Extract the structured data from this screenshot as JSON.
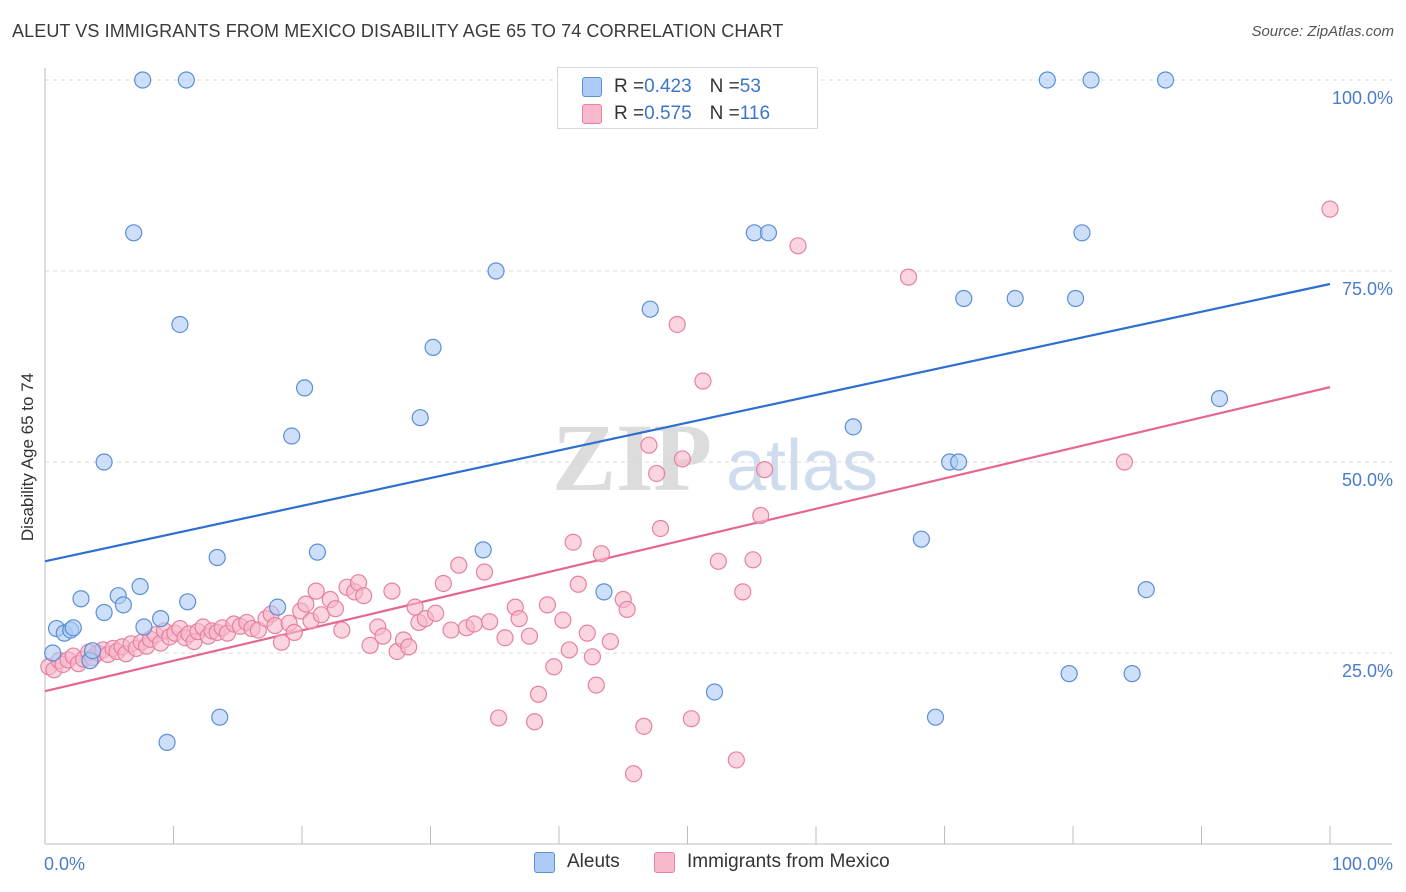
{
  "title": "ALEUT VS IMMIGRANTS FROM MEXICO DISABILITY AGE 65 TO 74 CORRELATION CHART",
  "source": "Source: ZipAtlas.com",
  "watermark": {
    "zip": "ZIP",
    "atlas": "atlas"
  },
  "legend_top": {
    "rows": [
      {
        "r_label": "R = ",
        "r_value": "0.423",
        "n_label": "N = ",
        "n_value": "53"
      },
      {
        "r_label": "R = ",
        "r_value": "0.575",
        "n_label": "N = ",
        "n_value": "116"
      }
    ]
  },
  "legend_bottom": {
    "aleuts": "Aleuts",
    "mexico": "Immigrants from Mexico"
  },
  "colors": {
    "aleut_fill": "#aecbf5",
    "aleut_stroke": "#5b8fd6",
    "aleut_line": "#2f6fcf",
    "mexico_fill": "#f7b9cc",
    "mexico_stroke": "#e7819f",
    "mexico_line": "#e5668f",
    "tick_text": "#4a7cc9",
    "grid": "#d9d9d9"
  },
  "chart_data": {
    "type": "scatter",
    "title": "ALEUT VS IMMIGRANTS FROM MEXICO DISABILITY AGE 65 TO 74 CORRELATION CHART",
    "xlabel": "",
    "ylabel": "Disability Age 65 to 74",
    "xlim": [
      0,
      100
    ],
    "ylim": [
      0,
      102
    ],
    "x_tick_labels": [
      "0.0%",
      "100.0%"
    ],
    "y_ticks": [
      25,
      50,
      75,
      100
    ],
    "y_tick_labels": [
      "25.0%",
      "50.0%",
      "75.0%",
      "100.0%"
    ],
    "grid": "horizontal dashed",
    "series": [
      {
        "name": "Aleuts",
        "r": 0.423,
        "n": 53,
        "trend": {
          "x": [
            0,
            100
          ],
          "y": [
            37.0,
            73.3
          ]
        },
        "points": [
          [
            0.6,
            25.0
          ],
          [
            0.9,
            28.2
          ],
          [
            1.5,
            27.6
          ],
          [
            2.0,
            28.0
          ],
          [
            2.2,
            28.3
          ],
          [
            2.8,
            32.1
          ],
          [
            3.5,
            24.0
          ],
          [
            3.7,
            25.3
          ],
          [
            4.6,
            30.3
          ],
          [
            4.6,
            50.0
          ],
          [
            5.7,
            32.5
          ],
          [
            6.1,
            31.3
          ],
          [
            6.9,
            80.0
          ],
          [
            7.4,
            33.7
          ],
          [
            7.6,
            100.0
          ],
          [
            7.7,
            28.4
          ],
          [
            9.0,
            29.5
          ],
          [
            9.5,
            13.3
          ],
          [
            10.5,
            68.0
          ],
          [
            11.0,
            100.0
          ],
          [
            11.1,
            31.7
          ],
          [
            13.4,
            37.5
          ],
          [
            13.6,
            16.6
          ],
          [
            18.1,
            31.0
          ],
          [
            19.2,
            53.4
          ],
          [
            20.2,
            59.7
          ],
          [
            21.2,
            38.2
          ],
          [
            29.2,
            55.8
          ],
          [
            30.2,
            65.0
          ],
          [
            34.1,
            38.5
          ],
          [
            35.1,
            75.0
          ],
          [
            43.5,
            33.0
          ],
          [
            47.1,
            70.0
          ],
          [
            52.1,
            19.9
          ],
          [
            55.2,
            80.0
          ],
          [
            56.3,
            80.0
          ],
          [
            58.5,
            100.0
          ],
          [
            62.9,
            54.6
          ],
          [
            68.2,
            39.9
          ],
          [
            69.3,
            16.6
          ],
          [
            70.4,
            50.0
          ],
          [
            71.1,
            50.0
          ],
          [
            71.5,
            71.4
          ],
          [
            75.5,
            71.4
          ],
          [
            78.0,
            100.0
          ],
          [
            79.7,
            22.3
          ],
          [
            80.2,
            71.4
          ],
          [
            80.7,
            80.0
          ],
          [
            81.4,
            100.0
          ],
          [
            84.6,
            22.3
          ],
          [
            85.7,
            33.3
          ],
          [
            87.2,
            100.0
          ],
          [
            91.4,
            58.3
          ]
        ]
      },
      {
        "name": "Immigrants from Mexico",
        "r": 0.575,
        "n": 116,
        "trend": {
          "x": [
            0,
            100
          ],
          "y": [
            20.0,
            59.8
          ]
        },
        "points": [
          [
            0.3,
            23.2
          ],
          [
            0.7,
            22.8
          ],
          [
            1.1,
            24.0
          ],
          [
            1.4,
            23.5
          ],
          [
            1.8,
            24.1
          ],
          [
            2.2,
            24.6
          ],
          [
            2.6,
            23.6
          ],
          [
            3.0,
            24.2
          ],
          [
            3.4,
            25.1
          ],
          [
            3.7,
            24.4
          ],
          [
            4.1,
            25.0
          ],
          [
            4.5,
            25.4
          ],
          [
            4.9,
            24.8
          ],
          [
            5.3,
            25.6
          ],
          [
            5.6,
            25.2
          ],
          [
            6.0,
            25.8
          ],
          [
            6.3,
            24.9
          ],
          [
            6.7,
            26.2
          ],
          [
            7.1,
            25.6
          ],
          [
            7.5,
            26.4
          ],
          [
            7.9,
            25.9
          ],
          [
            8.2,
            26.8
          ],
          [
            8.6,
            27.4
          ],
          [
            9.0,
            26.3
          ],
          [
            9.3,
            27.9
          ],
          [
            9.7,
            27.1
          ],
          [
            10.1,
            27.6
          ],
          [
            10.5,
            28.2
          ],
          [
            10.9,
            27.0
          ],
          [
            11.2,
            27.5
          ],
          [
            11.6,
            26.5
          ],
          [
            11.9,
            27.8
          ],
          [
            12.3,
            28.4
          ],
          [
            12.7,
            27.2
          ],
          [
            13.0,
            27.9
          ],
          [
            13.4,
            27.7
          ],
          [
            13.8,
            28.3
          ],
          [
            14.2,
            27.6
          ],
          [
            14.7,
            28.8
          ],
          [
            15.2,
            28.5
          ],
          [
            15.7,
            29.0
          ],
          [
            16.1,
            28.2
          ],
          [
            16.6,
            28.0
          ],
          [
            17.2,
            29.5
          ],
          [
            17.6,
            30.1
          ],
          [
            17.9,
            28.6
          ],
          [
            18.4,
            26.4
          ],
          [
            19.0,
            28.9
          ],
          [
            19.4,
            27.7
          ],
          [
            19.9,
            30.5
          ],
          [
            20.3,
            31.4
          ],
          [
            20.7,
            29.2
          ],
          [
            21.1,
            33.1
          ],
          [
            21.5,
            30.0
          ],
          [
            22.2,
            32.0
          ],
          [
            22.6,
            30.8
          ],
          [
            23.1,
            28.0
          ],
          [
            23.5,
            33.6
          ],
          [
            24.1,
            33.0
          ],
          [
            24.4,
            34.2
          ],
          [
            24.8,
            32.5
          ],
          [
            25.3,
            26.0
          ],
          [
            25.9,
            28.4
          ],
          [
            26.3,
            27.2
          ],
          [
            27.0,
            33.1
          ],
          [
            27.4,
            25.2
          ],
          [
            27.9,
            26.7
          ],
          [
            28.3,
            25.8
          ],
          [
            28.8,
            31.0
          ],
          [
            29.1,
            29.0
          ],
          [
            29.6,
            29.5
          ],
          [
            30.4,
            30.2
          ],
          [
            31.0,
            34.1
          ],
          [
            31.6,
            28.0
          ],
          [
            32.2,
            36.5
          ],
          [
            32.8,
            28.3
          ],
          [
            33.4,
            28.8
          ],
          [
            34.2,
            35.6
          ],
          [
            34.6,
            29.1
          ],
          [
            35.3,
            16.5
          ],
          [
            35.8,
            27.0
          ],
          [
            36.6,
            31.0
          ],
          [
            36.9,
            29.5
          ],
          [
            37.7,
            27.2
          ],
          [
            38.1,
            16.0
          ],
          [
            38.4,
            19.6
          ],
          [
            39.1,
            31.3
          ],
          [
            39.6,
            23.2
          ],
          [
            40.3,
            29.3
          ],
          [
            40.8,
            25.4
          ],
          [
            41.1,
            39.5
          ],
          [
            41.5,
            34.0
          ],
          [
            42.2,
            27.6
          ],
          [
            42.6,
            24.5
          ],
          [
            42.9,
            20.8
          ],
          [
            43.3,
            38.0
          ],
          [
            44.0,
            26.5
          ],
          [
            45.0,
            32.0
          ],
          [
            45.3,
            30.7
          ],
          [
            45.8,
            9.2
          ],
          [
            46.6,
            15.4
          ],
          [
            47.0,
            52.2
          ],
          [
            47.6,
            48.5
          ],
          [
            47.9,
            41.3
          ],
          [
            49.2,
            68.0
          ],
          [
            49.6,
            50.4
          ],
          [
            50.3,
            16.4
          ],
          [
            51.2,
            60.6
          ],
          [
            52.4,
            37.0
          ],
          [
            53.8,
            11.0
          ],
          [
            54.3,
            33.0
          ],
          [
            55.1,
            37.2
          ],
          [
            55.7,
            43.0
          ],
          [
            56.0,
            49.0
          ],
          [
            58.6,
            78.3
          ],
          [
            67.2,
            74.2
          ],
          [
            84.0,
            50.0
          ],
          [
            100.0,
            83.1
          ]
        ]
      }
    ]
  }
}
